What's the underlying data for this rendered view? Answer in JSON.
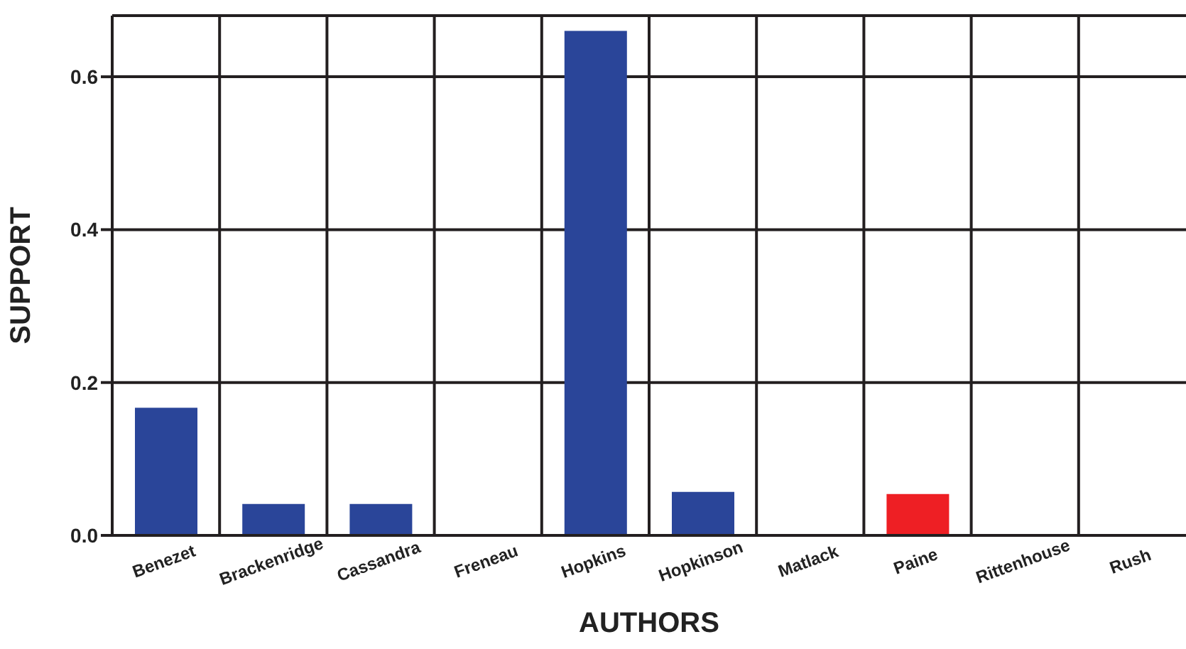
{
  "chart_data": {
    "type": "bar",
    "xlabel": "AUTHORS",
    "ylabel": "SUPPORT",
    "categories": [
      "Benezet",
      "Brackenridge",
      "Cassandra",
      "Freneau",
      "Hopkins",
      "Hopkinson",
      "Matlack",
      "Paine",
      "Rittenhouse",
      "Rush"
    ],
    "values": [
      0.167,
      0.041,
      0.041,
      0,
      0.66,
      0.057,
      0,
      0.054,
      0,
      0
    ],
    "colors": [
      "#2a4599",
      "#2a4599",
      "#2a4599",
      "#2a4599",
      "#2a4599",
      "#2a4599",
      "#2a4599",
      "#ee1f24",
      "#2a4599",
      "#2a4599"
    ],
    "ylim": [
      0,
      0.68
    ],
    "yticks": [
      {
        "value": 0,
        "label": "0.0"
      },
      {
        "value": 0.2,
        "label": "0.2"
      },
      {
        "value": 0.4,
        "label": "0.4"
      },
      {
        "value": 0.6,
        "label": "0.6"
      }
    ],
    "grid": true
  }
}
